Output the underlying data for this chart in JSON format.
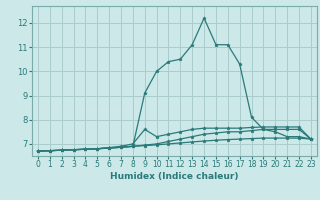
{
  "xlabel": "Humidex (Indice chaleur)",
  "background_color": "#cce8e8",
  "grid_color": "#aacccc",
  "line_color": "#2a7a7a",
  "xlim": [
    -0.5,
    23.5
  ],
  "ylim": [
    6.5,
    12.7
  ],
  "yticks": [
    7,
    8,
    9,
    10,
    11,
    12
  ],
  "xticks": [
    0,
    1,
    2,
    3,
    4,
    5,
    6,
    7,
    8,
    9,
    10,
    11,
    12,
    13,
    14,
    15,
    16,
    17,
    18,
    19,
    20,
    21,
    22,
    23
  ],
  "series": [
    {
      "x": [
        0,
        1,
        2,
        3,
        4,
        5,
        6,
        7,
        8,
        9,
        10,
        11,
        12,
        13,
        14,
        15,
        16,
        17,
        18,
        19,
        20,
        21,
        22,
        23
      ],
      "y": [
        6.7,
        6.72,
        6.74,
        6.76,
        6.78,
        6.8,
        6.83,
        6.86,
        6.9,
        9.1,
        10.0,
        10.4,
        10.5,
        11.1,
        12.2,
        11.1,
        11.1,
        10.3,
        8.1,
        7.6,
        7.5,
        7.3,
        7.3,
        7.2
      ]
    },
    {
      "x": [
        0,
        1,
        2,
        3,
        4,
        5,
        6,
        7,
        8,
        9,
        10,
        11,
        12,
        13,
        14,
        15,
        16,
        17,
        18,
        19,
        20,
        21,
        22,
        23
      ],
      "y": [
        6.7,
        6.72,
        6.74,
        6.76,
        6.78,
        6.8,
        6.85,
        6.9,
        7.0,
        7.6,
        7.3,
        7.4,
        7.5,
        7.6,
        7.65,
        7.65,
        7.65,
        7.65,
        7.68,
        7.7,
        7.7,
        7.7,
        7.7,
        7.2
      ]
    },
    {
      "x": [
        0,
        1,
        2,
        3,
        4,
        5,
        6,
        7,
        8,
        9,
        10,
        11,
        12,
        13,
        14,
        15,
        16,
        17,
        18,
        19,
        20,
        21,
        22,
        23
      ],
      "y": [
        6.7,
        6.72,
        6.74,
        6.76,
        6.78,
        6.8,
        6.83,
        6.86,
        6.9,
        6.95,
        7.0,
        7.1,
        7.2,
        7.3,
        7.4,
        7.45,
        7.5,
        7.5,
        7.55,
        7.6,
        7.6,
        7.6,
        7.6,
        7.2
      ]
    },
    {
      "x": [
        0,
        1,
        2,
        3,
        4,
        5,
        6,
        7,
        8,
        9,
        10,
        11,
        12,
        13,
        14,
        15,
        16,
        17,
        18,
        19,
        20,
        21,
        22,
        23
      ],
      "y": [
        6.7,
        6.72,
        6.74,
        6.76,
        6.78,
        6.8,
        6.83,
        6.86,
        6.9,
        6.93,
        6.96,
        7.0,
        7.04,
        7.08,
        7.12,
        7.15,
        7.18,
        7.2,
        7.22,
        7.24,
        7.24,
        7.24,
        7.24,
        7.2
      ]
    }
  ]
}
